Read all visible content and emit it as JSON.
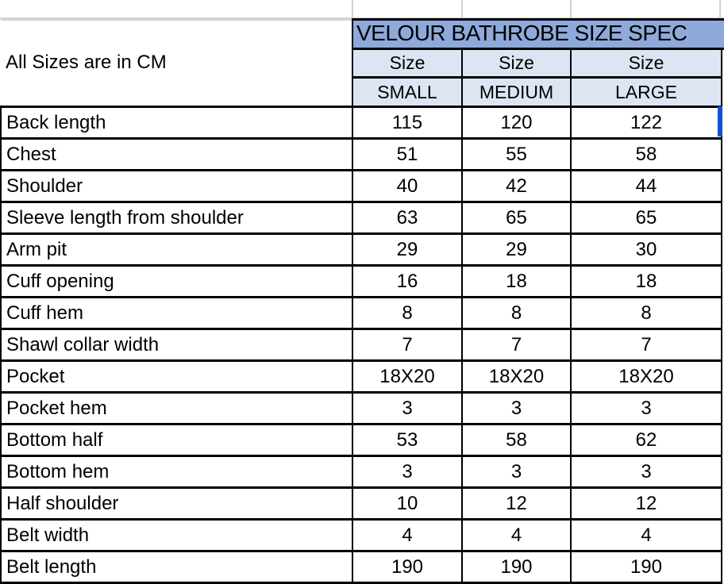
{
  "sheet": {
    "note_cell": "All Sizes are in CM",
    "title": "VELOUR BATHROBE SIZE SPEC",
    "size_header_label": "Size",
    "size_names": [
      "SMALL",
      "MEDIUM",
      "LARGE"
    ],
    "rows": [
      {
        "label": "Back length",
        "values": [
          "115",
          "120",
          "122"
        ]
      },
      {
        "label": "Chest",
        "values": [
          "51",
          "55",
          "58"
        ]
      },
      {
        "label": "Shoulder",
        "values": [
          "40",
          "42",
          "44"
        ]
      },
      {
        "label": "Sleeve length from shoulder",
        "values": [
          "63",
          "65",
          "65"
        ]
      },
      {
        "label": "Arm pit",
        "values": [
          "29",
          "29",
          "30"
        ]
      },
      {
        "label": "Cuff opening",
        "values": [
          "16",
          "18",
          "18"
        ]
      },
      {
        "label": "Cuff hem",
        "values": [
          "8",
          "8",
          "8"
        ]
      },
      {
        "label": "Shawl collar width",
        "values": [
          "7",
          "7",
          "7"
        ]
      },
      {
        "label": "Pocket",
        "values": [
          "18X20",
          "18X20",
          "18X20"
        ]
      },
      {
        "label": "Pocket hem",
        "values": [
          "3",
          "3",
          "3"
        ]
      },
      {
        "label": "Bottom half",
        "values": [
          "53",
          "58",
          "62"
        ]
      },
      {
        "label": "Bottom hem",
        "values": [
          "3",
          "3",
          "3"
        ]
      },
      {
        "label": "Half shoulder",
        "values": [
          "10",
          "12",
          "12"
        ]
      },
      {
        "label": "Belt width",
        "values": [
          "4",
          "4",
          "4"
        ]
      },
      {
        "label": "Belt length",
        "values": [
          "190",
          "190",
          "190"
        ]
      }
    ],
    "colors": {
      "title_bg": "#8EAADB",
      "size_header_bg": "#DCE5F1",
      "selection_blue": "#0D53D6",
      "table_border": "#000000",
      "gridline": "#D2D2D2"
    }
  }
}
